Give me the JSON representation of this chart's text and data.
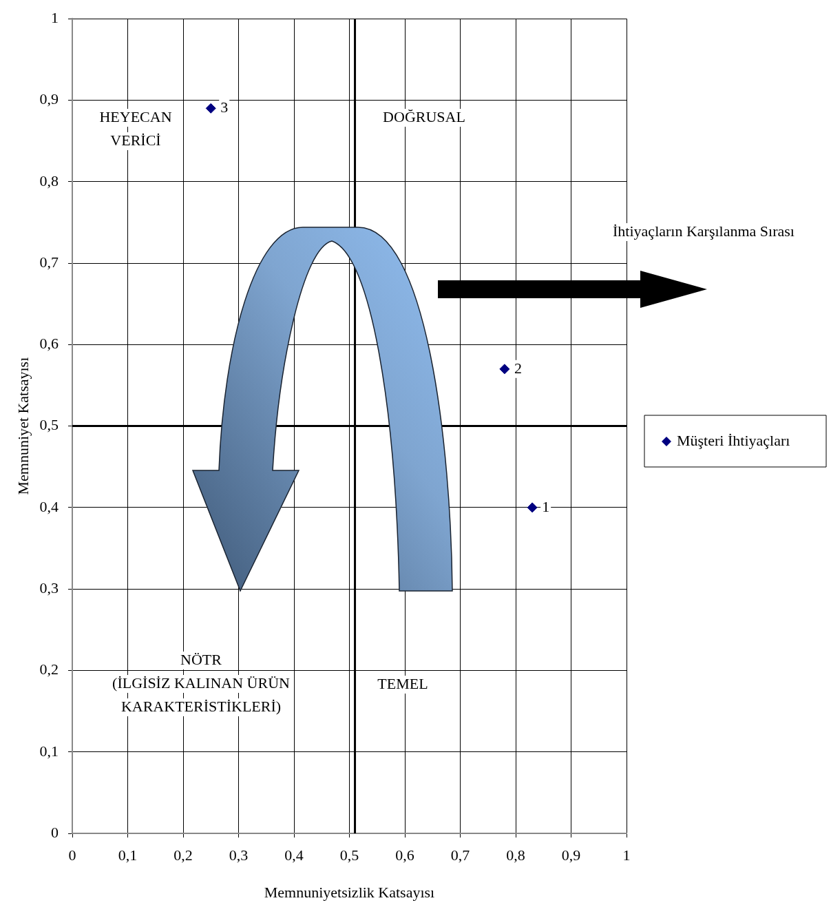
{
  "chart_data": {
    "type": "scatter",
    "xlabel": "Memnuniyetsizlik Katsayısı",
    "ylabel": "Memnuniyet Katsayısı",
    "series": [
      {
        "name": "Müşteri İhtiyaçları",
        "color": "#000080",
        "x": [
          0.83,
          0.78,
          0.25
        ],
        "values": [
          0.4,
          0.57,
          0.89
        ]
      }
    ],
    "xlim": [
      0,
      1
    ],
    "ylim": [
      0,
      1
    ],
    "xticks": [
      0,
      {
        "value": 0.1,
        "label": "0,1"
      },
      {
        "value": 0.2,
        "label": "0,2"
      },
      {
        "value": 0.3,
        "label": "0,3"
      },
      {
        "value": 0.4,
        "label": "0,4"
      },
      {
        "value": 0.5,
        "label": "0,5"
      },
      {
        "value": 0.6,
        "label": "0,6"
      },
      {
        "value": 0.7,
        "label": "0,7"
      },
      {
        "value": 0.8,
        "label": "0,8"
      },
      {
        "value": 0.9,
        "label": "0,9"
      },
      1
    ],
    "yticks": [
      0,
      {
        "value": 0.1,
        "label": "0,1"
      },
      {
        "value": 0.2,
        "label": "0,2"
      },
      {
        "value": 0.3,
        "label": "0,3"
      },
      {
        "value": 0.4,
        "label": "0,4"
      },
      {
        "value": 0.5,
        "label": "0,5"
      },
      {
        "value": 0.6,
        "label": "0,6"
      },
      {
        "value": 0.7,
        "label": "0,7"
      },
      {
        "value": 0.8,
        "label": "0,8"
      },
      {
        "value": 0.9,
        "label": "0,9"
      },
      1
    ],
    "ref_lines": [
      {
        "axis": "x",
        "value": 0.51,
        "color": "#000000"
      },
      {
        "axis": "y",
        "value": 0.5,
        "color": "#000000"
      }
    ],
    "annotations": [
      {
        "text": "1",
        "x": 0.83,
        "y": 0.4
      },
      {
        "text": "2",
        "x": 0.78,
        "y": 0.57
      },
      {
        "text": "3",
        "x": 0.25,
        "y": 0.89
      },
      "HEYECAN\nVERİCİ",
      "DOĞRUSAL",
      "NÖTR\n(İLGİSİZ KALINAN ÜRÜN\nKARAKTERİSTİKLERİ)",
      "TEMEL",
      "İhtiyaçların Karşılanma Sırası"
    ],
    "grid": true,
    "legend": "right",
    "marker": "diamond"
  }
}
